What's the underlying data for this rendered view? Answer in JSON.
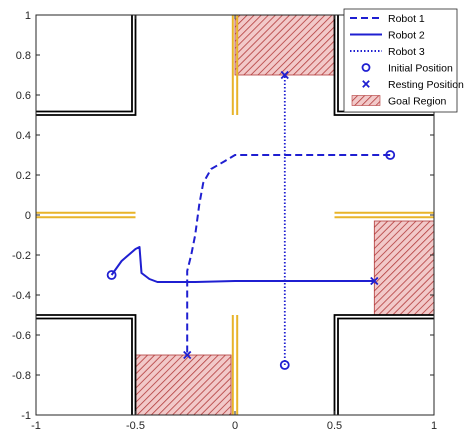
{
  "chart_data": {
    "type": "line",
    "title": "",
    "xlabel": "",
    "ylabel": "",
    "xlim": [
      -1,
      1
    ],
    "ylim": [
      -1,
      1
    ],
    "xticks": [
      -1,
      -0.5,
      0,
      0.5,
      1
    ],
    "yticks": [
      -1,
      -0.8,
      -0.6,
      -0.4,
      -0.2,
      0,
      0.2,
      0.4,
      0.6,
      0.8,
      1
    ],
    "xtick_labels": [
      "-1",
      "-0.5",
      "0",
      "0.5",
      "1"
    ],
    "ytick_labels": [
      "-1",
      "-0.8",
      "-0.6",
      "-0.4",
      "-0.2",
      "0",
      "0.2",
      "0.4",
      "0.6",
      "0.8",
      "1"
    ],
    "grid": false,
    "legend_position": "top-right",
    "colors": {
      "path": "#1f1fd1",
      "wall": "#000000",
      "door": "#e8b429",
      "goal_fill": "#f2c9c9",
      "goal_hatch": "#b23a3a"
    },
    "series": [
      {
        "name": "Robot 1",
        "style": "dashed",
        "x": [
          0.78,
          0.6,
          0.4,
          0.2,
          0.0,
          -0.05,
          -0.12,
          -0.16,
          -0.18,
          -0.2,
          -0.22,
          -0.24,
          -0.24,
          -0.24
        ],
        "y": [
          0.3,
          0.3,
          0.3,
          0.3,
          0.3,
          0.27,
          0.23,
          0.16,
          0.05,
          -0.1,
          -0.2,
          -0.28,
          -0.5,
          -0.7
        ]
      },
      {
        "name": "Robot 2",
        "style": "solid",
        "x": [
          -0.62,
          -0.57,
          -0.5,
          -0.48,
          -0.47,
          -0.43,
          -0.39,
          -0.3,
          -0.2,
          0.0,
          0.2,
          0.4,
          0.6,
          0.7
        ],
        "y": [
          -0.3,
          -0.23,
          -0.17,
          -0.16,
          -0.29,
          -0.32,
          -0.335,
          -0.335,
          -0.335,
          -0.33,
          -0.33,
          -0.33,
          -0.33,
          -0.33
        ]
      },
      {
        "name": "Robot 3",
        "style": "dotted",
        "x": [
          0.25,
          0.25
        ],
        "y": [
          -0.75,
          0.7
        ]
      }
    ],
    "initial_positions": [
      {
        "x": 0.78,
        "y": 0.3
      },
      {
        "x": -0.62,
        "y": -0.3
      },
      {
        "x": 0.25,
        "y": -0.75
      }
    ],
    "resting_positions": [
      {
        "x": -0.24,
        "y": -0.7
      },
      {
        "x": 0.7,
        "y": -0.33
      },
      {
        "x": 0.25,
        "y": 0.7
      }
    ],
    "goal_regions": [
      {
        "x": [
          0.0,
          0.5
        ],
        "y": [
          0.7,
          1.0
        ]
      },
      {
        "x": [
          -0.5,
          -0.02
        ],
        "y": [
          -1.0,
          -0.7
        ]
      },
      {
        "x": [
          0.7,
          1.0
        ],
        "y": [
          -0.5,
          -0.03
        ]
      }
    ],
    "walls": [
      {
        "x": [
          -1.0,
          -0.5,
          -0.5
        ],
        "y": [
          0.5,
          0.5,
          1.0
        ]
      },
      {
        "x": [
          1.0,
          0.5,
          0.5
        ],
        "y": [
          0.5,
          0.5,
          1.0
        ]
      },
      {
        "x": [
          -1.0,
          -0.5,
          -0.5
        ],
        "y": [
          -0.5,
          -0.5,
          -1.0
        ]
      },
      {
        "x": [
          1.0,
          0.5,
          0.5
        ],
        "y": [
          -0.5,
          -0.5,
          -1.0
        ]
      }
    ],
    "doors": [
      {
        "x": [
          -1.0,
          -0.5
        ],
        "y": [
          0.0,
          0.0
        ]
      },
      {
        "x": [
          0.5,
          1.0
        ],
        "y": [
          0.0,
          0.0
        ]
      },
      {
        "x": [
          0.0,
          0.0
        ],
        "y": [
          0.5,
          1.0
        ]
      },
      {
        "x": [
          0.0,
          0.0
        ],
        "y": [
          -0.5,
          -1.0
        ]
      }
    ],
    "legend": {
      "entries": [
        {
          "label": "Robot 1",
          "symbol": "dashed-line"
        },
        {
          "label": "Robot 2",
          "symbol": "solid-line"
        },
        {
          "label": "Robot 3",
          "symbol": "dotted-line"
        },
        {
          "label": "Initial Position",
          "symbol": "circle-marker"
        },
        {
          "label": "Resting Position",
          "symbol": "x-marker"
        },
        {
          "label": "Goal Region",
          "symbol": "hatched-patch"
        }
      ]
    }
  }
}
